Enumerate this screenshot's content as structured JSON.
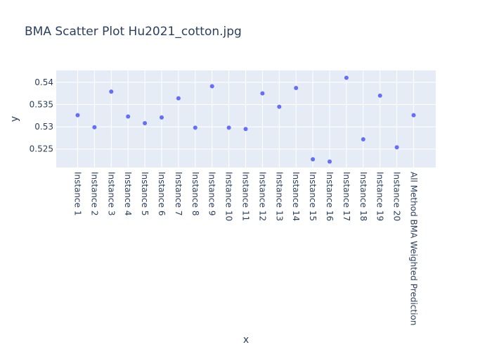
{
  "chart_data": {
    "type": "scatter",
    "title": "BMA Scatter Plot Hu2021_cotton.jpg",
    "xlabel": "x",
    "ylabel": "y",
    "categories": [
      "Instance 1",
      "Instance 2",
      "Instance 3",
      "Instance 4",
      "Instance 5",
      "Instance 6",
      "Instance 7",
      "Instance 8",
      "Instance 9",
      "Instance 10",
      "Instance 11",
      "Instance 12",
      "Instance 13",
      "Instance 14",
      "Instance 15",
      "Instance 16",
      "Instance 17",
      "Instance 18",
      "Instance 19",
      "Instance 20",
      "All Method BMA Weighted Prediction"
    ],
    "series": [
      {
        "values": [
          0.5326,
          0.5299,
          0.5379,
          0.5323,
          0.5308,
          0.5321,
          0.5364,
          0.5298,
          0.5391,
          0.5298,
          0.5295,
          0.5375,
          0.5345,
          0.5387,
          0.5227,
          0.5222,
          0.541,
          0.5272,
          0.537,
          0.5254,
          0.5326
        ],
        "color": "#636efa"
      }
    ],
    "ylim": [
      0.52085,
      0.54266
    ],
    "yticks": [
      "0.525",
      "0.53",
      "0.535",
      "0.54"
    ],
    "grid": true,
    "legend": false
  },
  "colors": {
    "plot_background": "#e5ecf6",
    "grid": "#ffffff",
    "text": "#2a3f5f",
    "marker": "#636efa"
  }
}
